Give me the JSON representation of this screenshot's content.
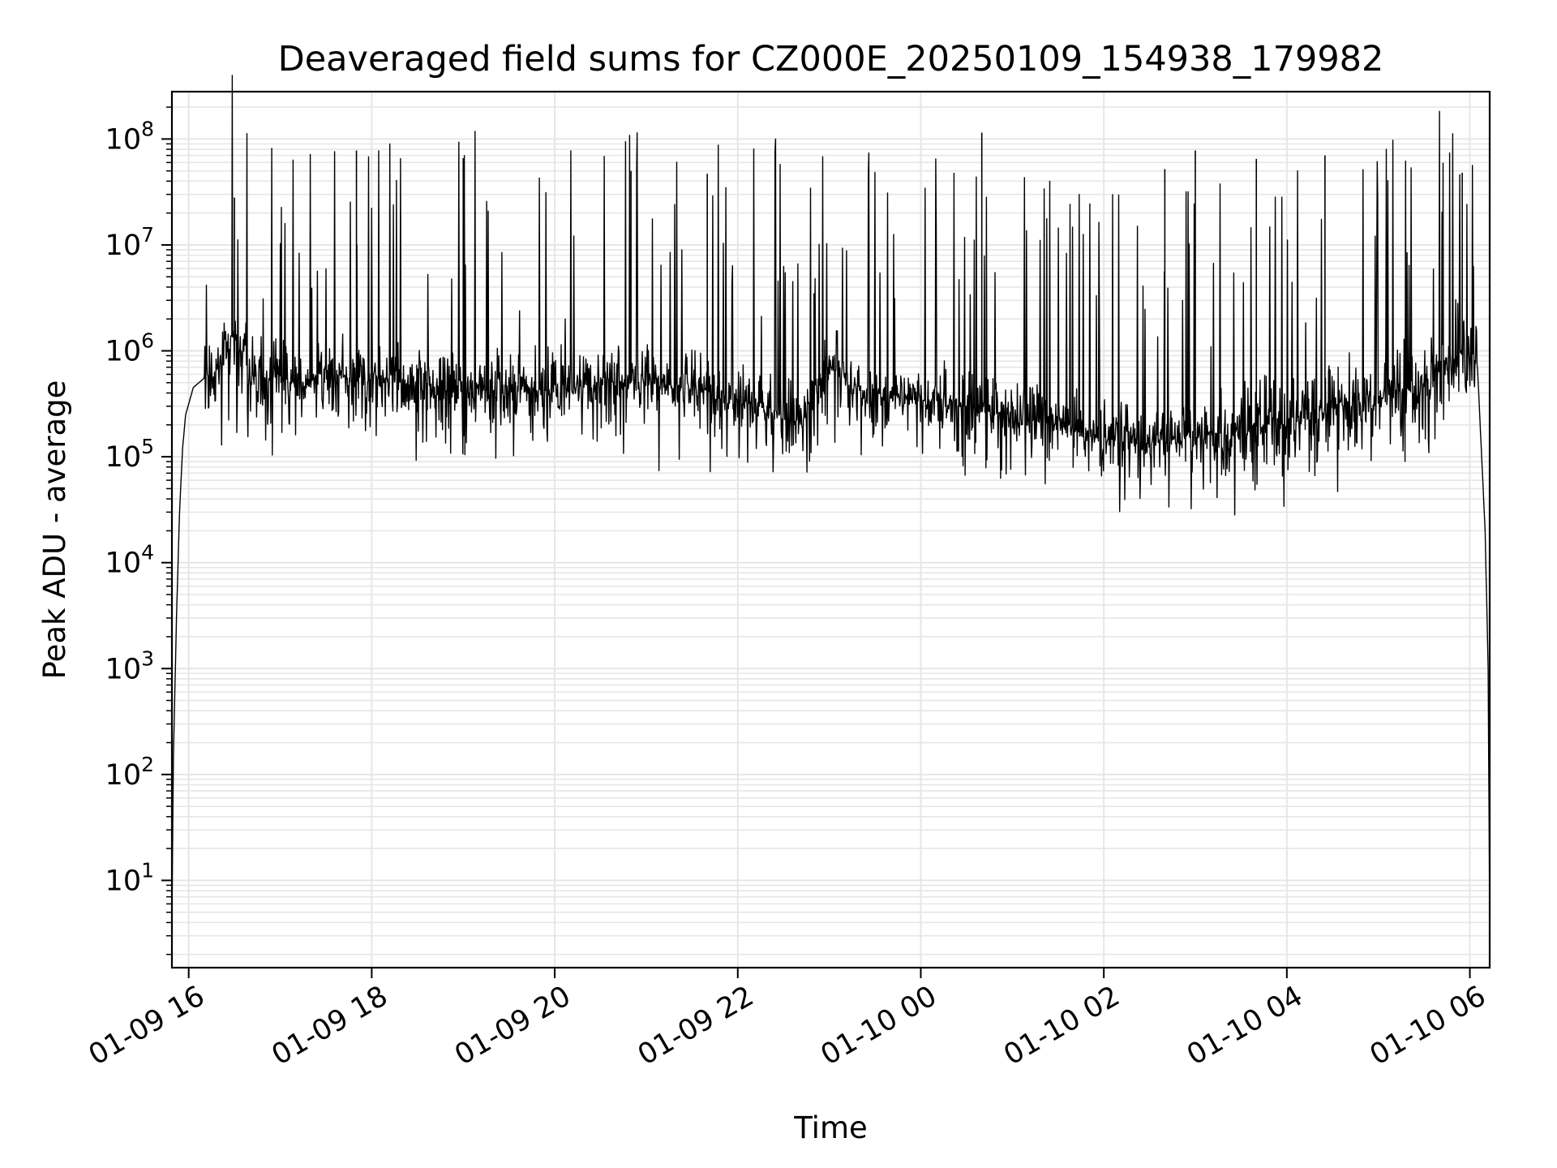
{
  "chart_data": {
    "type": "line",
    "title": "Deaveraged field sums for CZ000E_20250109_154938_179982",
    "xlabel": "Time",
    "ylabel": "Peak ADU - average",
    "yscale": "log",
    "ylim": [
      1.5,
      280000000
    ],
    "xlim": [
      "01-09 15:49",
      "01-10 06:13"
    ],
    "grid": true,
    "line_color": "#000000",
    "grid_color": "#e6e6e6",
    "x_ticks": [
      "01-09 16",
      "01-09 18",
      "01-09 20",
      "01-09 22",
      "01-10 00",
      "01-10 02",
      "01-10 04",
      "01-10 06"
    ],
    "y_ticks": [
      {
        "value": 10,
        "base": "10",
        "exp": "1"
      },
      {
        "value": 100,
        "base": "10",
        "exp": "2"
      },
      {
        "value": 1000,
        "base": "10",
        "exp": "3"
      },
      {
        "value": 10000,
        "base": "10",
        "exp": "4"
      },
      {
        "value": 100000,
        "base": "10",
        "exp": "5"
      },
      {
        "value": 1000000,
        "base": "10",
        "exp": "6"
      },
      {
        "value": 10000000,
        "base": "10",
        "exp": "7"
      },
      {
        "value": 100000000,
        "base": "10",
        "exp": "8"
      }
    ],
    "series": [
      {
        "x": [
          "01-09 15:49",
          "01-09 15:50",
          "01-09 15:52",
          "01-09 15:54",
          "01-09 15:56",
          "01-09 15:58",
          "01-09 16:03",
          "01-09 16:10",
          "01-09 16:20",
          "01-09 16:30",
          "01-09 16:40",
          "01-09 17:00",
          "01-09 17:30",
          "01-09 18:00",
          "01-09 18:30",
          "01-09 19:00",
          "01-09 19:30",
          "01-09 20:00",
          "01-09 20:30",
          "01-09 21:00",
          "01-09 21:30",
          "01-09 22:00",
          "01-09 22:30",
          "01-09 22:40",
          "01-09 23:00",
          "01-09 23:30",
          "01-10 00:00",
          "01-10 00:30",
          "01-10 01:00",
          "01-10 01:30",
          "01-10 02:00",
          "01-10 02:30",
          "01-10 03:00",
          "01-10 03:30",
          "01-10 04:00",
          "01-10 04:30",
          "01-10 05:00",
          "01-10 05:30",
          "01-10 05:55",
          "01-10 06:05",
          "01-10 06:10",
          "01-10 06:12",
          "01-10 06:13"
        ],
        "y": [
          4,
          150,
          3000,
          30000,
          120000,
          250000,
          450000,
          550000,
          700000,
          1500000,
          600000,
          500000,
          550000,
          600000,
          450000,
          400000,
          450000,
          420000,
          500000,
          500000,
          450000,
          350000,
          250000,
          200000,
          700000,
          350000,
          350000,
          300000,
          250000,
          200000,
          150000,
          130000,
          150000,
          180000,
          220000,
          300000,
          350000,
          450000,
          1000000,
          700000,
          20000,
          1000,
          4
        ]
      }
    ],
    "spikes": [
      {
        "x": "01-09 16:30",
        "y": 28000000
      },
      {
        "x": "01-09 17:50",
        "y": 78000000
      },
      {
        "x": "01-09 19:00",
        "y": 66000000
      },
      {
        "x": "01-09 20:50",
        "y": 50000000
      },
      {
        "x": "01-09 21:40",
        "y": 47000000
      },
      {
        "x": "01-09 22:50",
        "y": 3500000
      },
      {
        "x": "01-10 00:40",
        "y": 115000000
      },
      {
        "x": "01-10 02:40",
        "y": 52000000
      },
      {
        "x": "01-10 03:00",
        "y": 78000000
      },
      {
        "x": "01-10 03:40",
        "y": 65000000
      },
      {
        "x": "01-10 04:25",
        "y": 70000000
      },
      {
        "x": "01-10 05:55",
        "y": 48000000
      }
    ]
  }
}
